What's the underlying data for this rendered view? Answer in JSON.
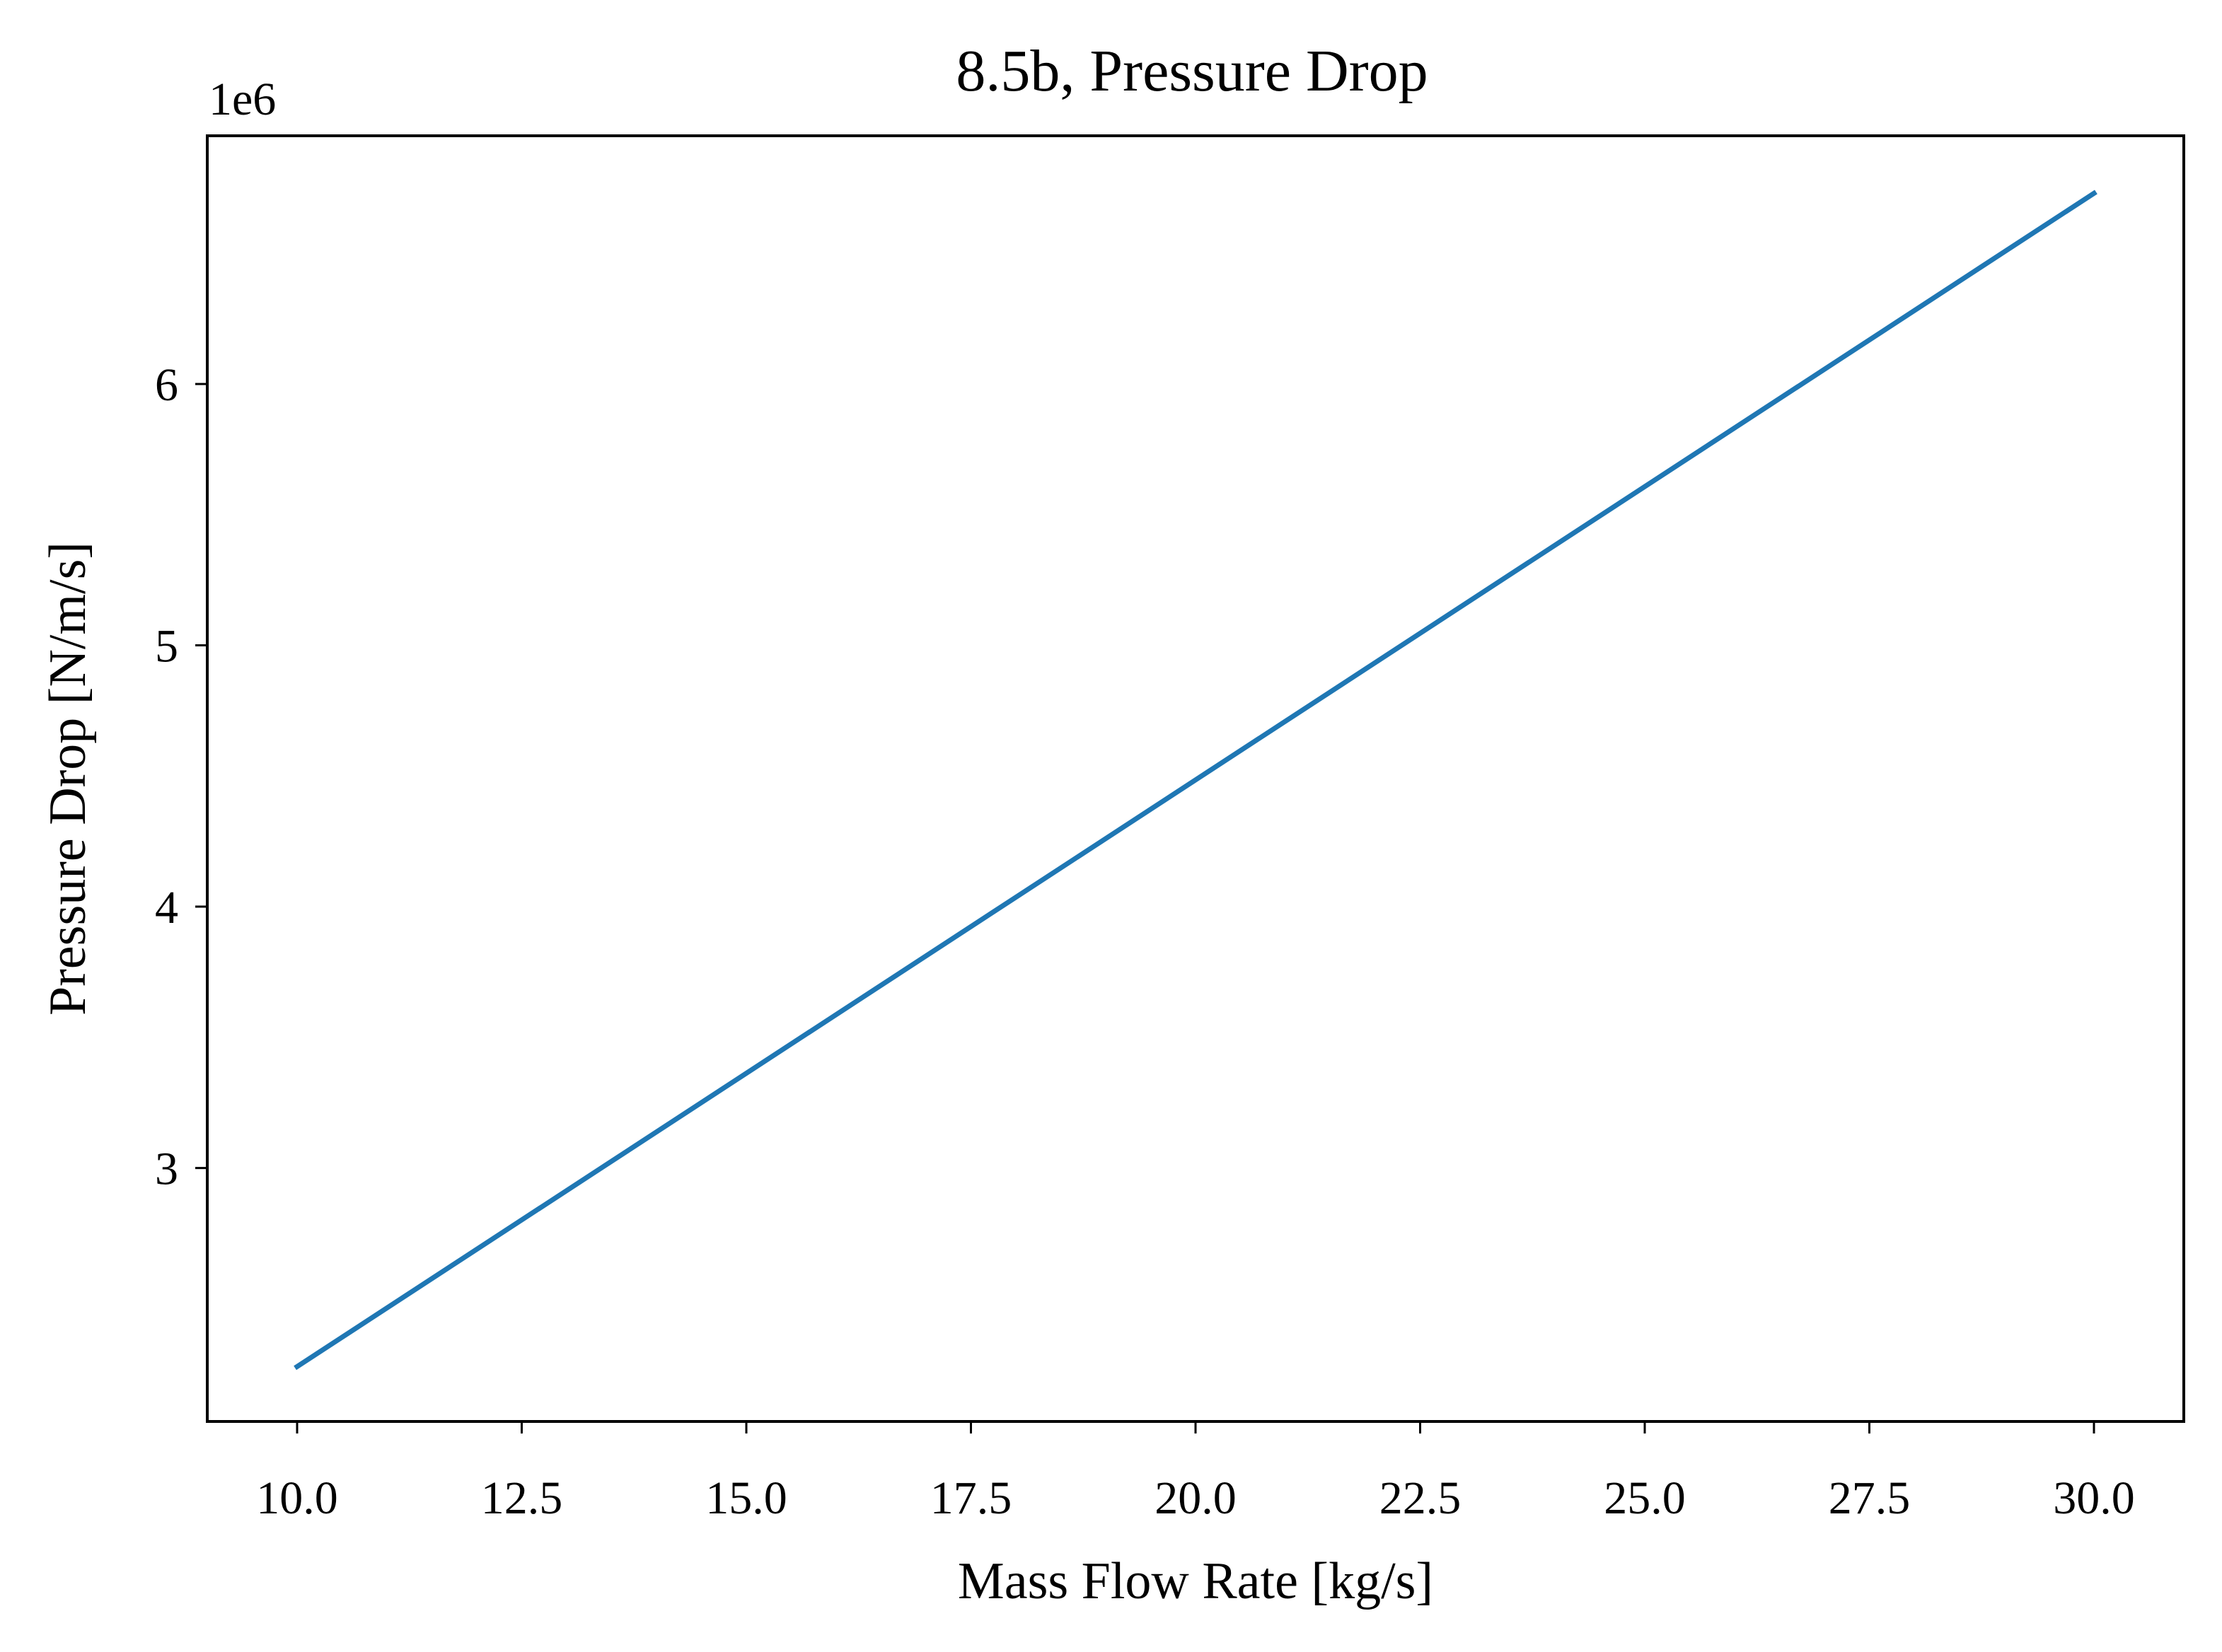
{
  "chart_data": {
    "type": "line",
    "title": "8.5b, Pressure Drop",
    "xlabel": "Mass Flow Rate [kg/s]",
    "ylabel": "Pressure Drop [N/m/s]",
    "y_offset_label": "1e6",
    "xlim": [
      9.0,
      31.0
    ],
    "ylim": [
      2.03,
      6.95
    ],
    "x_ticks": [
      10.0,
      12.5,
      15.0,
      17.5,
      20.0,
      22.5,
      25.0,
      27.5,
      30.0
    ],
    "x_tick_labels": [
      "10.0",
      "12.5",
      "15.0",
      "17.5",
      "20.0",
      "22.5",
      "25.0",
      "27.5",
      "30.0"
    ],
    "y_ticks": [
      3,
      4,
      5,
      6
    ],
    "y_tick_labels": [
      "3",
      "4",
      "5",
      "6"
    ],
    "grid": false,
    "legend": false,
    "series": [
      {
        "color": "#1f77b4",
        "x": [
          10.0,
          30.0
        ],
        "y": [
          2.24,
          6.73
        ]
      }
    ]
  }
}
